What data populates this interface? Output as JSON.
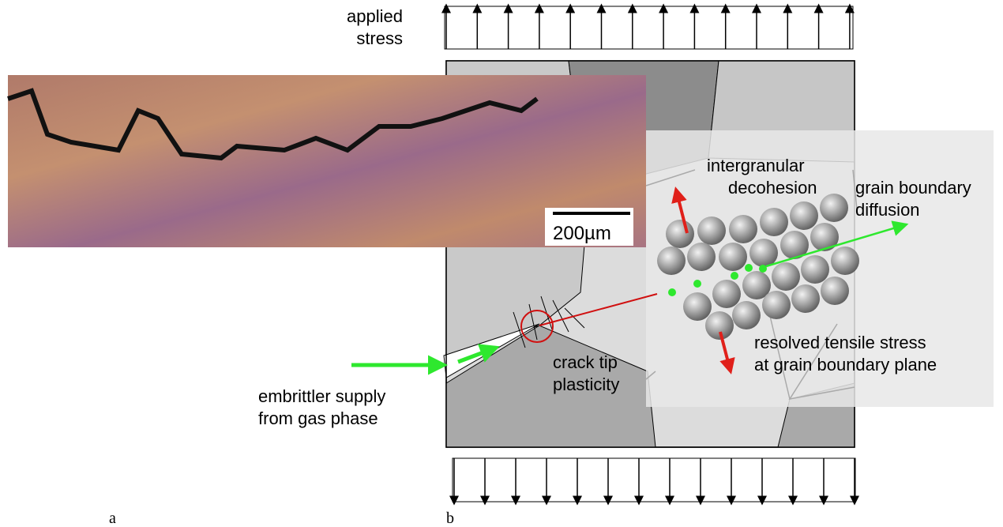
{
  "labels": {
    "applied_stress": [
      "applied",
      "stress"
    ],
    "scale_bar": "200µm",
    "intergranular_decohesion": [
      "intergranular",
      "decohesion"
    ],
    "grain_boundary_diffusion": [
      "grain boundary",
      "diffusion"
    ],
    "resolved_tensile_stress": [
      "resolved tensile stress",
      "at grain boundary plane"
    ],
    "crack_tip_plasticity": [
      "crack tip",
      "plasticity"
    ],
    "embrittler_supply": [
      "embrittler supply",
      "from gas phase"
    ]
  },
  "panels": [
    "a",
    "b"
  ]
}
